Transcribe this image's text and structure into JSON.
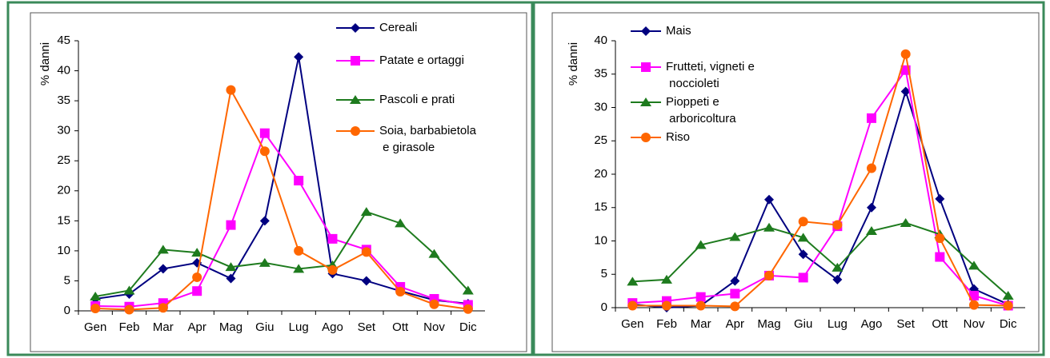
{
  "chart_data": [
    {
      "type": "line",
      "ylabel": "% danni",
      "categories": [
        "Gen",
        "Feb",
        "Mar",
        "Apr",
        "Mag",
        "Giu",
        "Lug",
        "Ago",
        "Set",
        "Ott",
        "Nov",
        "Dic"
      ],
      "ylim": [
        0,
        45
      ],
      "yticks": [
        0,
        5,
        10,
        15,
        20,
        25,
        30,
        35,
        40,
        45
      ],
      "series": [
        {
          "name": "Cereali",
          "color": "#000080",
          "marker": "diamond",
          "values": [
            2,
            2.8,
            7,
            8,
            5.4,
            15,
            42.3,
            6.2,
            5,
            3.3,
            1.8,
            1.2
          ]
        },
        {
          "name": "Patate e ortaggi",
          "color": "#ff00ff",
          "marker": "square",
          "values": [
            0.8,
            0.7,
            1.3,
            3.3,
            14.3,
            29.6,
            21.7,
            12,
            10.2,
            4,
            2,
            1
          ]
        },
        {
          "name": "Pascoli e prati",
          "color": "#1e7b1e",
          "marker": "triangle",
          "values": [
            2.4,
            3.4,
            10.2,
            9.7,
            7.3,
            8,
            7,
            7.6,
            16.5,
            14.6,
            9.5,
            3.4
          ]
        },
        {
          "name": "Soia, barbabietola e girasole",
          "color": "#ff6600",
          "marker": "circle",
          "values": [
            0.4,
            0.2,
            0.5,
            5.6,
            36.8,
            26.6,
            10,
            6.8,
            9.8,
            3.2,
            1.1,
            0.3
          ]
        }
      ]
    },
    {
      "type": "line",
      "ylabel": "% danni",
      "categories": [
        "Gen",
        "Feb",
        "Mar",
        "Apr",
        "Mag",
        "Giu",
        "Lug",
        "Ago",
        "Set",
        "Ott",
        "Nov",
        "Dic"
      ],
      "ylim": [
        0,
        40
      ],
      "yticks": [
        0,
        5,
        10,
        15,
        20,
        25,
        30,
        35,
        40
      ],
      "series": [
        {
          "name": "Mais",
          "color": "#000080",
          "marker": "diamond",
          "values": [
            0.5,
            0,
            0.3,
            4,
            16.2,
            8,
            4.2,
            15,
            32.4,
            16.3,
            2.8,
            0.5
          ]
        },
        {
          "name": "Frutteti, vigneti e noccioleti",
          "color": "#ff00ff",
          "marker": "square",
          "values": [
            0.7,
            1,
            1.6,
            2.1,
            4.8,
            4.5,
            12.2,
            28.4,
            35.6,
            7.6,
            1.8,
            0.3
          ]
        },
        {
          "name": "Pioppeti e arboricoltura",
          "color": "#1e7b1e",
          "marker": "triangle",
          "values": [
            3.9,
            4.2,
            9.4,
            10.6,
            12,
            10.5,
            6,
            11.5,
            12.7,
            11,
            6.3,
            1.8
          ]
        },
        {
          "name": "Riso",
          "color": "#ff6600",
          "marker": "circle",
          "values": [
            0.3,
            0.3,
            0.3,
            0.2,
            4.8,
            12.9,
            12.4,
            20.9,
            38,
            10.4,
            0.4,
            0.3
          ]
        }
      ]
    }
  ]
}
